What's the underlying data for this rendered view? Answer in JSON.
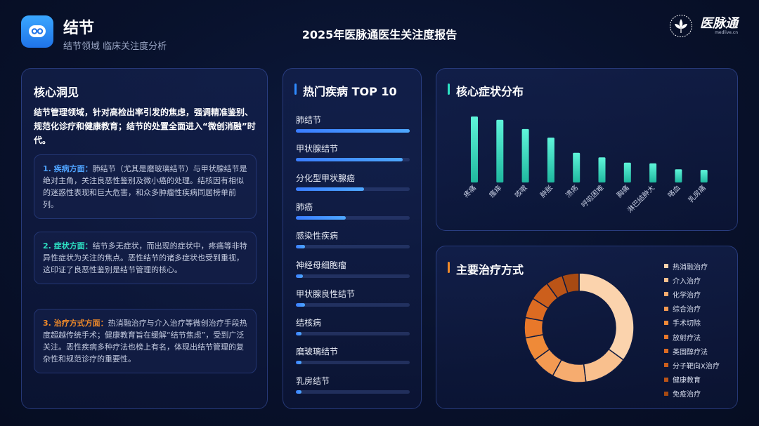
{
  "header": {
    "title": "结节",
    "subtitle": "结节领域 临床关注度分析",
    "report_title": "2025年医脉通医生关注度报告",
    "brand_name": "医脉通",
    "brand_url": "medlive.cn",
    "app_icon": "message-bubble-icon",
    "brand_icon": "leaf-emblem-icon"
  },
  "insights": {
    "title": "核心洞见",
    "intro": "结节管理领域，针对高检出率引发的焦虑，强调精准鉴别、规范化诊疗和健康教育；结节的处置全面进入“微创消融”时代。",
    "sections": [
      {
        "lead": "1. 疾病方面：",
        "color": "#4fa3ff",
        "text": "肺结节（尤其是磨玻璃结节）与甲状腺结节是绝对主角，关注良恶性鉴别及微小癌的处理。结核因有相似的迷惑性表现和巨大危害，和众多肿瘤性疾病同居榜单前列。"
      },
      {
        "lead": "2. 症状方面：",
        "color": "#2de2c4",
        "text": "结节多无症状，而出现的症状中，疼痛等非特异性症状为关注的焦点。恶性结节的诸多症状也受到重视，这印证了良恶性鉴别是结节管理的核心。"
      },
      {
        "lead": "3. 治疗方式方面：",
        "color": "#f08a2a",
        "text": "热消融治疗与介入治疗等微创治疗手段热度超越传统手术；健康教育旨在缓解“结节焦虑”，受到广泛关注。恶性疾病多种疗法也榜上有名，体现出结节管理的复杂性和规范诊疗的重要性。"
      }
    ]
  },
  "top10": {
    "title": "热门疾病 TOP 10",
    "items": [
      {
        "name": "肺结节",
        "level": 1.0
      },
      {
        "name": "甲状腺结节",
        "level": 0.94
      },
      {
        "name": "分化型甲状腺癌",
        "level": 0.6
      },
      {
        "name": "肺癌",
        "level": 0.44
      },
      {
        "name": "感染性疾病",
        "level": 0.08
      },
      {
        "name": "神经母细胞瘤",
        "level": 0.06
      },
      {
        "name": "甲状腺良性结节",
        "level": 0.08
      },
      {
        "name": "结核病",
        "level": 0.05
      },
      {
        "name": "磨玻璃结节",
        "level": 0.05
      },
      {
        "name": "乳房结节",
        "level": 0.05
      }
    ]
  },
  "chart_data": [
    {
      "type": "bar",
      "title": "核心症状分布",
      "categories": [
        "疼痛",
        "瘙痒",
        "咳嗽",
        "肿胀",
        "溃疡",
        "呼吸困难",
        "胸痛",
        "淋巴结肿大",
        "咯血",
        "乳房痛"
      ],
      "values": [
        100,
        95,
        81,
        68,
        45,
        38,
        30,
        29,
        20,
        19
      ],
      "ylim": [
        0,
        100
      ],
      "color": "#2de2c4"
    },
    {
      "type": "pie",
      "title": "主要治疗方式",
      "categories": [
        "热消融治疗",
        "介入治疗",
        "化学治疗",
        "综合治疗",
        "手术切除",
        "放射疗法",
        "类固醇疗法",
        "分子靶向X治疗",
        "健康教育",
        "免疫治疗"
      ],
      "values": [
        35,
        13,
        10,
        7,
        7,
        6,
        6,
        6,
        5,
        5
      ],
      "colors": [
        "#fbd3ad",
        "#f9c08e",
        "#f6ac6f",
        "#f39a52",
        "#ef8a38",
        "#e8782a",
        "#dc6b22",
        "#cc5f1c",
        "#bb5417",
        "#a84a12"
      ]
    }
  ]
}
